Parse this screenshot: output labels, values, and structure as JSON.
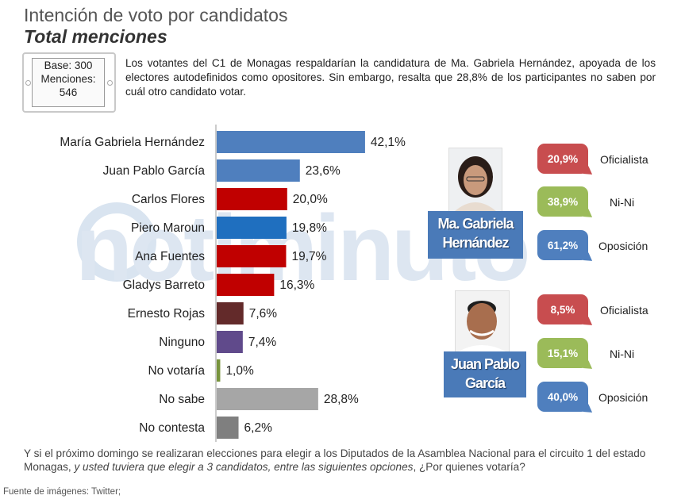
{
  "header": {
    "title": "Intención de voto por candidatos",
    "subtitle": "Total menciones"
  },
  "base_box": {
    "base": "Base: 300",
    "menciones_label": "Menciones:",
    "menciones_value": "546"
  },
  "intro_text": "Los votantes del C1 de Monagas respaldarían la candidatura de Ma. Gabriela Hernández, apoyada de los electores autodefinidos como opositores. Sin embargo, resalta que 28,8% de los participantes no saben por cuál otro candidato votar.",
  "watermark": "notiminuto",
  "chart_data": {
    "type": "bar",
    "orientation": "horizontal",
    "categories": [
      "María Gabriela Hernández",
      "Juan Pablo García",
      "Carlos Flores",
      "Piero Maroun",
      "Ana Fuentes",
      "Gladys Barreto",
      "Ernesto Rojas",
      "Ninguno",
      "No votaría",
      "No sabe",
      "No contesta"
    ],
    "values": [
      42.1,
      23.6,
      20.0,
      19.8,
      19.7,
      16.3,
      7.6,
      7.4,
      1.0,
      28.8,
      6.2
    ],
    "value_labels": [
      "42,1%",
      "23,6%",
      "20,0%",
      "19,8%",
      "19,7%",
      "16,3%",
      "7,6%",
      "7,4%",
      "1,0%",
      "28,8%",
      "6,2%"
    ],
    "colors": [
      "#4f7fbe",
      "#4f7fbe",
      "#c00000",
      "#1f6fbf",
      "#c00000",
      "#c00000",
      "#632a2a",
      "#604a8b",
      "#77933c",
      "#a6a6a6",
      "#7f7f7f"
    ],
    "xlim": [
      0,
      45
    ]
  },
  "candidates": [
    {
      "name_line1": "Ma. Gabriela",
      "name_line2": "Hernández",
      "breakdown": [
        {
          "label": "Oficialista",
          "value": "20,9%",
          "color": "#c84d4f"
        },
        {
          "label": "Ni-Ni",
          "value": "38,9%",
          "color": "#9bbb59"
        },
        {
          "label": "Oposición",
          "value": "61,2%",
          "color": "#4f7fbe"
        }
      ]
    },
    {
      "name_line1": "Juan Pablo",
      "name_line2": "García",
      "breakdown": [
        {
          "label": "Oficialista",
          "value": "8,5%",
          "color": "#c84d4f"
        },
        {
          "label": "Ni-Ni",
          "value": "15,1%",
          "color": "#9bbb59"
        },
        {
          "label": "Oposición",
          "value": "40,0%",
          "color": "#4f7fbe"
        }
      ]
    }
  ],
  "question": {
    "part1": "Y si el próximo domingo se realizaran elecciones para elegir a los Diputados de la Asamblea Nacional para el circuito 1 del estado Monagas,",
    "part2": "y usted tuviera que elegir a 3 candidatos, entre las siguientes opciones",
    "part3": ", ¿Por quienes votaría?"
  },
  "source": "Fuente de imágenes: Twitter;"
}
